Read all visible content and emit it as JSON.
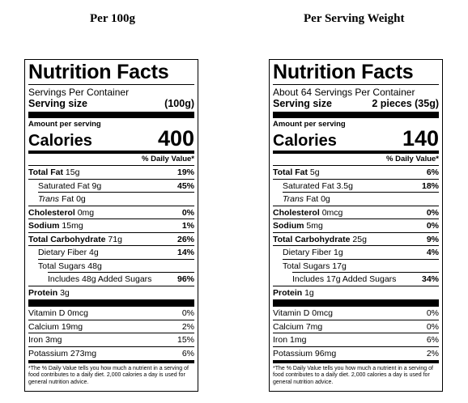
{
  "columns": [
    {
      "heading": "Per 100g",
      "title": "Nutrition Facts",
      "servings_per_container": "Servings Per Container",
      "serving_size_label": "Serving size",
      "serving_size_value": "(100g)",
      "amount_per_serving": "Amount per serving",
      "calories_label": "Calories",
      "calories_value": "400",
      "dv_header": "% Daily Value*",
      "total_fat": {
        "label": "Total Fat",
        "amount": "15g",
        "pct": "19%"
      },
      "saturated_fat": {
        "label": "Saturated Fat 9g",
        "pct": "45%"
      },
      "trans_fat": {
        "label": "Trans",
        "amount": "Fat 0g"
      },
      "cholesterol": {
        "label": "Cholesterol",
        "amount": "0mg",
        "pct": "0%"
      },
      "sodium": {
        "label": "Sodium",
        "amount": "15mg",
        "pct": "1%"
      },
      "total_carb": {
        "label": "Total Carbohydrate",
        "amount": "71g",
        "pct": "26%"
      },
      "dietary_fiber": {
        "label": "Dietary Fiber 4g",
        "pct": "14%"
      },
      "total_sugars": {
        "label": "Total Sugars 48g"
      },
      "added_sugars": {
        "label": "Includes 48g Added Sugars",
        "pct": "96%"
      },
      "protein": {
        "label": "Protein",
        "amount": "3g"
      },
      "vitamin_d": {
        "label": "Vitamin D 0mcg",
        "pct": "0%"
      },
      "calcium": {
        "label": "Calcium 19mg",
        "pct": "2%"
      },
      "iron": {
        "label": "Iron 3mg",
        "pct": "15%"
      },
      "potassium": {
        "label": "Potassium 273mg",
        "pct": "6%"
      },
      "footnote": "*The % Daily Value tells you how much a nutrient in a serving of food contributes to a daily diet. 2,000 calories a day is used for general nutrition advice."
    },
    {
      "heading": "Per Serving Weight",
      "title": "Nutrition Facts",
      "servings_per_container": "About 64 Servings Per Container",
      "serving_size_label": "Serving size",
      "serving_size_value": "2 pieces (35g)",
      "amount_per_serving": "Amount per serving",
      "calories_label": "Calories",
      "calories_value": "140",
      "dv_header": "% Daily Value*",
      "total_fat": {
        "label": "Total Fat",
        "amount": "5g",
        "pct": "6%"
      },
      "saturated_fat": {
        "label": "Saturated Fat 3.5g",
        "pct": "18%"
      },
      "trans_fat": {
        "label": "Trans",
        "amount": "Fat 0g"
      },
      "cholesterol": {
        "label": "Cholesterol",
        "amount": "0mcg",
        "pct": "0%"
      },
      "sodium": {
        "label": "Sodium",
        "amount": "5mg",
        "pct": "0%"
      },
      "total_carb": {
        "label": "Total Carbohydrate",
        "amount": "25g",
        "pct": "9%"
      },
      "dietary_fiber": {
        "label": "Dietary Fiber 1g",
        "pct": "4%"
      },
      "total_sugars": {
        "label": "Total Sugars 17g"
      },
      "added_sugars": {
        "label": "Includes 17g Added Sugars",
        "pct": "34%"
      },
      "protein": {
        "label": "Protein",
        "amount": "1g"
      },
      "vitamin_d": {
        "label": "Vitamin D 0mcg",
        "pct": "0%"
      },
      "calcium": {
        "label": "Calcium 7mg",
        "pct": "0%"
      },
      "iron": {
        "label": "Iron 1mg",
        "pct": "6%"
      },
      "potassium": {
        "label": "Potassium 96mg",
        "pct": "2%"
      },
      "footnote": "*The % Daily Value tells you how much a nutrient in a serving of food contributes to a daily diet. 2,000 calories a day is used for general nutrition advice."
    }
  ]
}
